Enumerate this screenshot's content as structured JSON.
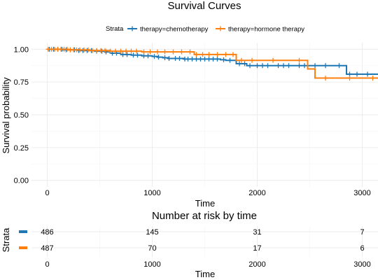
{
  "chart_data": {
    "type": "line",
    "title": "Survival Curves",
    "xlabel": "Time",
    "ylabel": "Survival probability",
    "xlim": [
      -150,
      3150
    ],
    "ylim": [
      -0.05,
      1.05
    ],
    "x_ticks": [
      0,
      1000,
      2000,
      3000
    ],
    "y_ticks": [
      0.0,
      0.25,
      0.5,
      0.75,
      1.0
    ],
    "y_tick_labels": [
      "0.00",
      "0.25",
      "0.50",
      "0.75",
      "1.00"
    ],
    "grid": true,
    "legend": {
      "title": "Strata",
      "position": "top"
    },
    "series": [
      {
        "name": "therapy=chemotherapy",
        "color": "#1f77b4",
        "steps": [
          [
            0,
            1.0
          ],
          [
            150,
            0.996
          ],
          [
            300,
            0.99
          ],
          [
            450,
            0.985
          ],
          [
            550,
            0.98
          ],
          [
            600,
            0.97
          ],
          [
            700,
            0.96
          ],
          [
            800,
            0.955
          ],
          [
            900,
            0.95
          ],
          [
            1000,
            0.945
          ],
          [
            1050,
            0.94
          ],
          [
            1100,
            0.935
          ],
          [
            1150,
            0.93
          ],
          [
            1300,
            0.925
          ],
          [
            1650,
            0.92
          ],
          [
            1700,
            0.915
          ],
          [
            1800,
            0.89
          ],
          [
            1900,
            0.875
          ],
          [
            2850,
            0.81
          ],
          [
            3150,
            0.81
          ]
        ],
        "censor_times": [
          20,
          60,
          100,
          140,
          180,
          220,
          260,
          300,
          340,
          380,
          420,
          470,
          520,
          560,
          620,
          660,
          720,
          760,
          820,
          860,
          920,
          960,
          1020,
          1060,
          1120,
          1160,
          1220,
          1260,
          1310,
          1340,
          1380,
          1420,
          1460,
          1500,
          1540,
          1580,
          1620,
          1680,
          1740,
          1830,
          1880,
          1930,
          2000,
          2050,
          2100,
          2200,
          2250,
          2300,
          2400,
          2450,
          2480,
          2550,
          2650,
          2780,
          2880,
          2950,
          3050
        ]
      },
      {
        "name": "therapy=hormone therapy",
        "color": "#ff7f0e",
        "steps": [
          [
            0,
            1.0
          ],
          [
            200,
            0.995
          ],
          [
            400,
            0.99
          ],
          [
            600,
            0.985
          ],
          [
            900,
            0.98
          ],
          [
            1400,
            0.96
          ],
          [
            1800,
            0.915
          ],
          [
            2480,
            0.85
          ],
          [
            2550,
            0.78
          ],
          [
            3150,
            0.78
          ]
        ],
        "censor_times": [
          10,
          40,
          70,
          100,
          130,
          160,
          190,
          220,
          250,
          280,
          310,
          350,
          390,
          430,
          470,
          510,
          550,
          600,
          650,
          700,
          750,
          800,
          850,
          920,
          980,
          1050,
          1120,
          1200,
          1280,
          1360,
          1420,
          1480,
          1540,
          1620,
          1700,
          1770,
          1850,
          1950,
          2150,
          2400,
          2650,
          2880,
          3100
        ]
      }
    ],
    "risk_table": {
      "title": "Number at risk by time",
      "ylabel": "Strata",
      "xlabel": "Time",
      "times": [
        0,
        1000,
        2000,
        3000
      ],
      "rows": [
        {
          "color": "#1f77b4",
          "values": [
            "486",
            "145",
            "31",
            "7"
          ]
        },
        {
          "color": "#ff7f0e",
          "values": [
            "487",
            "70",
            "17",
            "6"
          ]
        }
      ]
    }
  }
}
